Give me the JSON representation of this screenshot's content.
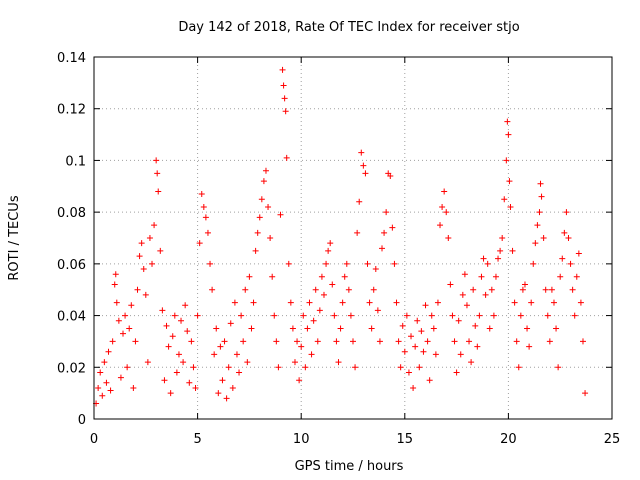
{
  "chart_data": {
    "type": "scatter",
    "title": "Day 142 of 2018, Rate Of TEC Index for receiver stjo",
    "xlabel": "GPS time / hours",
    "ylabel": "ROTI / TECUs",
    "xlim": [
      0,
      25
    ],
    "ylim": [
      0,
      0.14
    ],
    "xticks": [
      {
        "value": 0,
        "label": "0"
      },
      {
        "value": 5,
        "label": "5"
      },
      {
        "value": 10,
        "label": "10"
      },
      {
        "value": 15,
        "label": "15"
      },
      {
        "value": 20,
        "label": "20"
      },
      {
        "value": 25,
        "label": "25"
      }
    ],
    "yticks": [
      {
        "value": 0,
        "label": "0"
      },
      {
        "value": 0.02,
        "label": "0.02"
      },
      {
        "value": 0.04,
        "label": "0.04"
      },
      {
        "value": 0.06,
        "label": "0.06"
      },
      {
        "value": 0.08,
        "label": "0.08"
      },
      {
        "value": 0.1,
        "label": "0.1"
      },
      {
        "value": 0.12,
        "label": "0.12"
      },
      {
        "value": 0.14,
        "label": "0.14"
      }
    ],
    "grid": true,
    "marker": "+",
    "series": [
      {
        "name": "ROTI",
        "color": "#ff0000",
        "points": [
          [
            0.1,
            0.006
          ],
          [
            0.2,
            0.012
          ],
          [
            0.3,
            0.018
          ],
          [
            0.4,
            0.009
          ],
          [
            0.5,
            0.022
          ],
          [
            0.6,
            0.014
          ],
          [
            0.7,
            0.026
          ],
          [
            0.8,
            0.011
          ],
          [
            0.9,
            0.03
          ],
          [
            1.0,
            0.052
          ],
          [
            1.05,
            0.056
          ],
          [
            1.1,
            0.045
          ],
          [
            1.2,
            0.038
          ],
          [
            1.3,
            0.016
          ],
          [
            1.4,
            0.033
          ],
          [
            1.5,
            0.04
          ],
          [
            1.6,
            0.02
          ],
          [
            1.7,
            0.035
          ],
          [
            1.8,
            0.044
          ],
          [
            1.9,
            0.012
          ],
          [
            2.0,
            0.03
          ],
          [
            2.1,
            0.05
          ],
          [
            2.2,
            0.063
          ],
          [
            2.3,
            0.068
          ],
          [
            2.4,
            0.058
          ],
          [
            2.5,
            0.048
          ],
          [
            2.6,
            0.022
          ],
          [
            2.7,
            0.07
          ],
          [
            2.8,
            0.06
          ],
          [
            2.9,
            0.075
          ],
          [
            3.0,
            0.1
          ],
          [
            3.05,
            0.095
          ],
          [
            3.1,
            0.088
          ],
          [
            3.2,
            0.065
          ],
          [
            3.3,
            0.042
          ],
          [
            3.4,
            0.015
          ],
          [
            3.5,
            0.036
          ],
          [
            3.6,
            0.028
          ],
          [
            3.7,
            0.01
          ],
          [
            3.8,
            0.032
          ],
          [
            3.9,
            0.04
          ],
          [
            4.0,
            0.018
          ],
          [
            4.1,
            0.025
          ],
          [
            4.2,
            0.038
          ],
          [
            4.3,
            0.022
          ],
          [
            4.4,
            0.044
          ],
          [
            4.5,
            0.034
          ],
          [
            4.6,
            0.014
          ],
          [
            4.7,
            0.03
          ],
          [
            4.8,
            0.02
          ],
          [
            4.9,
            0.012
          ],
          [
            5.0,
            0.04
          ],
          [
            5.1,
            0.068
          ],
          [
            5.2,
            0.087
          ],
          [
            5.3,
            0.082
          ],
          [
            5.4,
            0.078
          ],
          [
            5.5,
            0.072
          ],
          [
            5.6,
            0.06
          ],
          [
            5.7,
            0.05
          ],
          [
            5.8,
            0.025
          ],
          [
            5.9,
            0.035
          ],
          [
            6.0,
            0.01
          ],
          [
            6.1,
            0.028
          ],
          [
            6.2,
            0.015
          ],
          [
            6.3,
            0.03
          ],
          [
            6.4,
            0.008
          ],
          [
            6.5,
            0.02
          ],
          [
            6.6,
            0.037
          ],
          [
            6.7,
            0.012
          ],
          [
            6.8,
            0.045
          ],
          [
            6.9,
            0.025
          ],
          [
            7.0,
            0.018
          ],
          [
            7.1,
            0.04
          ],
          [
            7.2,
            0.03
          ],
          [
            7.3,
            0.05
          ],
          [
            7.4,
            0.022
          ],
          [
            7.5,
            0.055
          ],
          [
            7.6,
            0.035
          ],
          [
            7.7,
            0.045
          ],
          [
            7.8,
            0.065
          ],
          [
            7.9,
            0.072
          ],
          [
            8.0,
            0.078
          ],
          [
            8.1,
            0.085
          ],
          [
            8.2,
            0.092
          ],
          [
            8.3,
            0.096
          ],
          [
            8.4,
            0.082
          ],
          [
            8.5,
            0.07
          ],
          [
            8.6,
            0.055
          ],
          [
            8.7,
            0.04
          ],
          [
            8.8,
            0.03
          ],
          [
            8.9,
            0.02
          ],
          [
            9.0,
            0.079
          ],
          [
            9.1,
            0.135
          ],
          [
            9.15,
            0.129
          ],
          [
            9.2,
            0.124
          ],
          [
            9.25,
            0.119
          ],
          [
            9.3,
            0.101
          ],
          [
            9.4,
            0.06
          ],
          [
            9.5,
            0.045
          ],
          [
            9.6,
            0.035
          ],
          [
            9.7,
            0.022
          ],
          [
            9.8,
            0.03
          ],
          [
            9.9,
            0.015
          ],
          [
            10.0,
            0.028
          ],
          [
            10.1,
            0.04
          ],
          [
            10.2,
            0.02
          ],
          [
            10.3,
            0.035
          ],
          [
            10.4,
            0.045
          ],
          [
            10.5,
            0.025
          ],
          [
            10.6,
            0.038
          ],
          [
            10.7,
            0.05
          ],
          [
            10.8,
            0.03
          ],
          [
            10.9,
            0.042
          ],
          [
            11.0,
            0.055
          ],
          [
            11.1,
            0.048
          ],
          [
            11.2,
            0.06
          ],
          [
            11.3,
            0.065
          ],
          [
            11.4,
            0.068
          ],
          [
            11.5,
            0.052
          ],
          [
            11.6,
            0.04
          ],
          [
            11.7,
            0.03
          ],
          [
            11.8,
            0.022
          ],
          [
            11.9,
            0.035
          ],
          [
            12.0,
            0.045
          ],
          [
            12.1,
            0.055
          ],
          [
            12.2,
            0.06
          ],
          [
            12.3,
            0.05
          ],
          [
            12.4,
            0.04
          ],
          [
            12.5,
            0.03
          ],
          [
            12.6,
            0.02
          ],
          [
            12.7,
            0.072
          ],
          [
            12.8,
            0.084
          ],
          [
            12.9,
            0.103
          ],
          [
            13.0,
            0.098
          ],
          [
            13.1,
            0.095
          ],
          [
            13.2,
            0.06
          ],
          [
            13.3,
            0.045
          ],
          [
            13.4,
            0.035
          ],
          [
            13.5,
            0.05
          ],
          [
            13.6,
            0.058
          ],
          [
            13.7,
            0.042
          ],
          [
            13.8,
            0.03
          ],
          [
            13.9,
            0.066
          ],
          [
            14.0,
            0.072
          ],
          [
            14.1,
            0.08
          ],
          [
            14.2,
            0.095
          ],
          [
            14.3,
            0.094
          ],
          [
            14.4,
            0.074
          ],
          [
            14.5,
            0.06
          ],
          [
            14.6,
            0.045
          ],
          [
            14.7,
            0.03
          ],
          [
            14.8,
            0.02
          ],
          [
            14.9,
            0.036
          ],
          [
            15.0,
            0.026
          ],
          [
            15.1,
            0.04
          ],
          [
            15.2,
            0.018
          ],
          [
            15.3,
            0.032
          ],
          [
            15.4,
            0.012
          ],
          [
            15.5,
            0.028
          ],
          [
            15.6,
            0.038
          ],
          [
            15.7,
            0.02
          ],
          [
            15.8,
            0.034
          ],
          [
            15.9,
            0.026
          ],
          [
            16.0,
            0.044
          ],
          [
            16.1,
            0.03
          ],
          [
            16.2,
            0.015
          ],
          [
            16.3,
            0.04
          ],
          [
            16.4,
            0.035
          ],
          [
            16.5,
            0.025
          ],
          [
            16.6,
            0.045
          ],
          [
            16.7,
            0.075
          ],
          [
            16.8,
            0.082
          ],
          [
            16.9,
            0.088
          ],
          [
            17.0,
            0.08
          ],
          [
            17.1,
            0.07
          ],
          [
            17.2,
            0.052
          ],
          [
            17.3,
            0.04
          ],
          [
            17.4,
            0.03
          ],
          [
            17.5,
            0.018
          ],
          [
            17.6,
            0.038
          ],
          [
            17.7,
            0.025
          ],
          [
            17.8,
            0.048
          ],
          [
            17.9,
            0.056
          ],
          [
            18.0,
            0.044
          ],
          [
            18.1,
            0.03
          ],
          [
            18.2,
            0.022
          ],
          [
            18.3,
            0.05
          ],
          [
            18.4,
            0.036
          ],
          [
            18.5,
            0.028
          ],
          [
            18.6,
            0.04
          ],
          [
            18.7,
            0.055
          ],
          [
            18.8,
            0.062
          ],
          [
            18.9,
            0.048
          ],
          [
            19.0,
            0.06
          ],
          [
            19.1,
            0.035
          ],
          [
            19.2,
            0.05
          ],
          [
            19.3,
            0.04
          ],
          [
            19.4,
            0.055
          ],
          [
            19.5,
            0.062
          ],
          [
            19.6,
            0.065
          ],
          [
            19.7,
            0.07
          ],
          [
            19.8,
            0.085
          ],
          [
            19.9,
            0.1
          ],
          [
            19.95,
            0.115
          ],
          [
            20.0,
            0.11
          ],
          [
            20.05,
            0.092
          ],
          [
            20.1,
            0.082
          ],
          [
            20.2,
            0.065
          ],
          [
            20.3,
            0.045
          ],
          [
            20.4,
            0.03
          ],
          [
            20.5,
            0.02
          ],
          [
            20.6,
            0.04
          ],
          [
            20.7,
            0.05
          ],
          [
            20.8,
            0.052
          ],
          [
            20.9,
            0.035
          ],
          [
            21.0,
            0.028
          ],
          [
            21.1,
            0.045
          ],
          [
            21.2,
            0.06
          ],
          [
            21.3,
            0.068
          ],
          [
            21.4,
            0.075
          ],
          [
            21.5,
            0.08
          ],
          [
            21.55,
            0.091
          ],
          [
            21.6,
            0.086
          ],
          [
            21.7,
            0.07
          ],
          [
            21.8,
            0.05
          ],
          [
            21.9,
            0.04
          ],
          [
            22.0,
            0.03
          ],
          [
            22.1,
            0.05
          ],
          [
            22.2,
            0.045
          ],
          [
            22.3,
            0.035
          ],
          [
            22.4,
            0.02
          ],
          [
            22.5,
            0.055
          ],
          [
            22.6,
            0.062
          ],
          [
            22.7,
            0.072
          ],
          [
            22.8,
            0.08
          ],
          [
            22.9,
            0.07
          ],
          [
            23.0,
            0.06
          ],
          [
            23.1,
            0.05
          ],
          [
            23.2,
            0.04
          ],
          [
            23.3,
            0.055
          ],
          [
            23.4,
            0.064
          ],
          [
            23.5,
            0.045
          ],
          [
            23.6,
            0.03
          ],
          [
            23.7,
            0.01
          ]
        ]
      }
    ]
  }
}
